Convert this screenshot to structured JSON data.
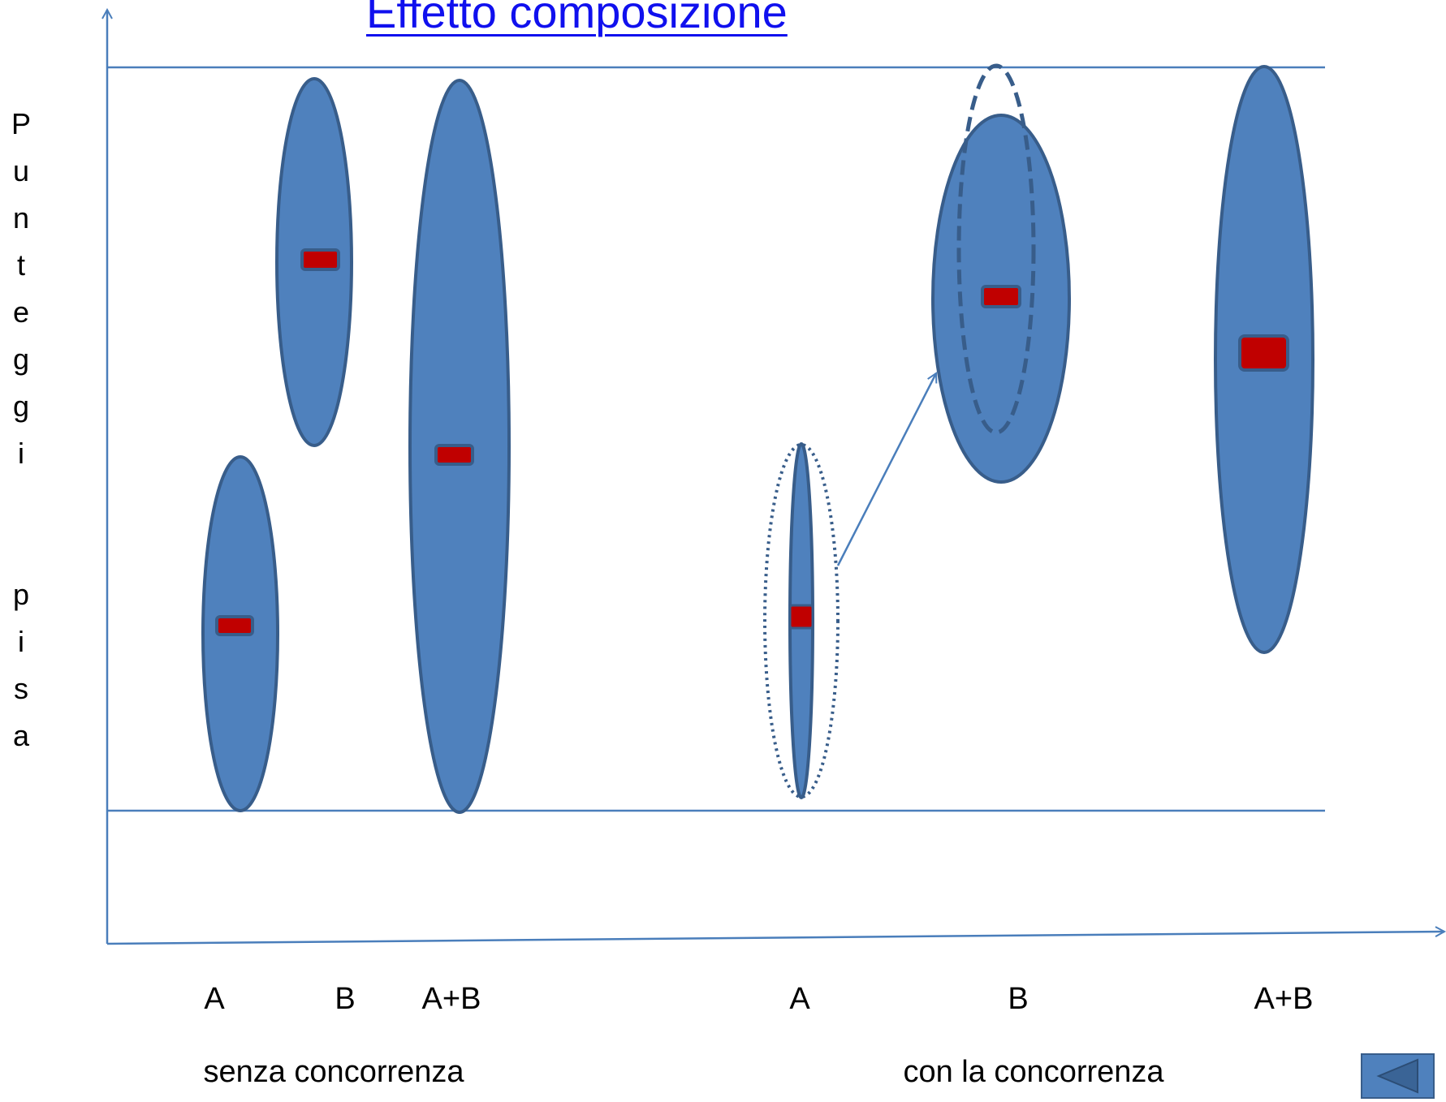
{
  "title": "Effetto composizione",
  "y_axis_label": "Punteggi pisa",
  "y_axis_letters": [
    "P",
    "u",
    "n",
    "t",
    "e",
    "g",
    "g",
    "i",
    "",
    "",
    "p",
    "i",
    "s",
    "a"
  ],
  "groups": [
    {
      "label": "senza concorrenza",
      "categories": [
        "A",
        "B",
        "A+B"
      ]
    },
    {
      "label": "con la concorrenza",
      "categories": [
        "A",
        "B",
        "A+B"
      ]
    }
  ],
  "colors": {
    "ellipse_fill": "#4f81bd",
    "ellipse_stroke": "#385d8a",
    "mean_marker": "#c00000",
    "axis": "#4a7ebb",
    "title": "#1010ee"
  },
  "navigation": {
    "back_icon": "triangle-left-icon"
  }
}
